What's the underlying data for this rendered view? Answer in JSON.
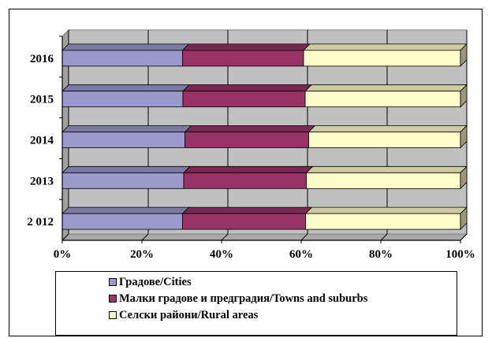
{
  "chart_data": {
    "type": "bar",
    "orientation": "horizontal",
    "stacked": "percent",
    "three_d": true,
    "categories": [
      "2016",
      "2015",
      "2014",
      "2013",
      "2 012"
    ],
    "series": [
      {
        "name": "Градове/Cities",
        "color": "#9999cc",
        "values": [
          30.2,
          30.3,
          30.8,
          30.5,
          30.2
        ]
      },
      {
        "name": "Малки градове и предградия/Towns and suburbs",
        "color": "#993366",
        "values": [
          30.4,
          30.7,
          31.1,
          30.8,
          30.9
        ]
      },
      {
        "name": "Селски райони/Rural areas",
        "color": "#ffffcc",
        "values": [
          39.4,
          39.0,
          38.1,
          38.7,
          38.9
        ]
      }
    ],
    "x_ticks": [
      "0%",
      "20%",
      "40%",
      "60%",
      "80%",
      "100%"
    ],
    "xlim": [
      0,
      100
    ],
    "grid": true,
    "legend_position": "bottom",
    "title": "",
    "xlabel": "",
    "ylabel": ""
  }
}
